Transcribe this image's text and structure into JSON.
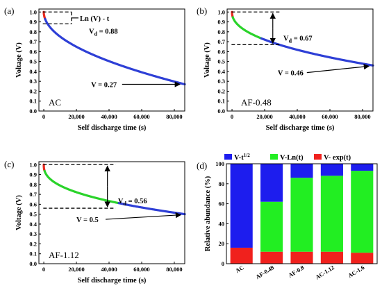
{
  "chart_data": [
    {
      "panel": "(a)",
      "type": "line",
      "sample": "AC",
      "xlabel": "Self discharge time (s)",
      "ylabel": "Voltage (V)",
      "xlim": [
        -3000,
        86400
      ],
      "ylim": [
        0,
        1.03
      ],
      "xticks": [
        0,
        20000,
        40000,
        60000,
        80000
      ],
      "xticklabels": [
        "0",
        "20,000",
        "40,000",
        "60,000",
        "80,000"
      ],
      "yticks": [
        0.0,
        0.1,
        0.2,
        0.3,
        0.4,
        0.5,
        0.6,
        0.7,
        0.8,
        0.9,
        1.0
      ],
      "yticklabels": [
        "0.0",
        "0.1",
        "0.2",
        "0.3",
        "0.4",
        "0.5",
        "0.6",
        "0.7",
        "0.8",
        "0.9",
        "1.0"
      ],
      "curve": {
        "model": "power",
        "v_start": 1.0,
        "v_end": 0.27,
        "exponent": 0.5
      },
      "fit_segments": [
        {
          "color": "#e8271c",
          "x_range": [
            0,
            800
          ]
        },
        {
          "color": "#2e3fd6",
          "x_range": [
            800,
            86400
          ]
        }
      ],
      "annotations": {
        "box_label": "Ln (V) - t",
        "vd": "V",
        "vd_sub": "d",
        "vd_value": " = 0.88",
        "v_end_label": "V = 0.27"
      },
      "dashed_levels": [
        1.0,
        0.88
      ]
    },
    {
      "panel": "(b)",
      "type": "line",
      "sample": "AF-0.48",
      "xlabel": "Self discharge time (s)",
      "ylabel": "Voltage (V)",
      "xlim": [
        -3000,
        86400
      ],
      "ylim": [
        0,
        1.03
      ],
      "xticks": [
        0,
        20000,
        40000,
        60000,
        80000
      ],
      "xticklabels": [
        "0",
        "20,000",
        "40,000",
        "60,000",
        "80,000"
      ],
      "yticks": [
        0.0,
        0.1,
        0.2,
        0.3,
        0.4,
        0.5,
        0.6,
        0.7,
        0.8,
        0.9,
        1.0
      ],
      "yticklabels": [
        "0.0",
        "0.1",
        "0.2",
        "0.3",
        "0.4",
        "0.5",
        "0.6",
        "0.7",
        "0.8",
        "0.9",
        "1.0"
      ],
      "curve": {
        "model": "power",
        "v_start": 1.0,
        "v_end": 0.46,
        "exponent": 0.45
      },
      "fit_segments": [
        {
          "color": "#e8271c",
          "x_range": [
            0,
            500
          ]
        },
        {
          "color": "#2ad32a",
          "x_range": [
            500,
            18000
          ]
        },
        {
          "color": "#2e3fd6",
          "x_range": [
            18000,
            86400
          ]
        }
      ],
      "annotations": {
        "vd": "V",
        "vd_sub": "d",
        "vd_value": " = 0.67",
        "v_end_label": "V = 0.46"
      },
      "dashed_levels": [
        1.0,
        0.67
      ]
    },
    {
      "panel": "(c)",
      "type": "line",
      "sample": "AF-1.12",
      "xlabel": "Self discharge time (s)",
      "ylabel": "Voltage (V)",
      "xlim": [
        -3000,
        86400
      ],
      "ylim": [
        0,
        1.03
      ],
      "xticks": [
        0,
        20000,
        40000,
        60000,
        80000
      ],
      "xticklabels": [
        "0",
        "20,000",
        "40,000",
        "60,000",
        "80,000"
      ],
      "yticks": [
        0.0,
        0.1,
        0.2,
        0.3,
        0.4,
        0.5,
        0.6,
        0.7,
        0.8,
        0.9,
        1.0
      ],
      "yticklabels": [
        "0.0",
        "0.1",
        "0.2",
        "0.3",
        "0.4",
        "0.5",
        "0.6",
        "0.7",
        "0.8",
        "0.9",
        "1.0"
      ],
      "curve": {
        "model": "power",
        "v_start": 1.0,
        "v_end": 0.5,
        "exponent": 0.4
      },
      "fit_segments": [
        {
          "color": "#e8271c",
          "x_range": [
            0,
            500
          ]
        },
        {
          "color": "#2ad32a",
          "x_range": [
            500,
            46000
          ]
        },
        {
          "color": "#2e3fd6",
          "x_range": [
            46000,
            86400
          ]
        }
      ],
      "annotations": {
        "vd": "V",
        "vd_sub": "d",
        "vd_value": " = 0.56",
        "v_end_label": "V = 0.5"
      },
      "dashed_levels": [
        1.0,
        0.56
      ]
    },
    {
      "panel": "(d)",
      "type": "bar",
      "stacked": true,
      "categories": [
        "AC",
        "AF-0.48",
        "AF-0.8",
        "AC-1.12",
        "AC-1.6"
      ],
      "ylabel": "Relative abundance (%)",
      "ylim": [
        0,
        100
      ],
      "yticks": [
        0,
        20,
        40,
        60,
        80,
        100
      ],
      "yticklabels": [
        "0",
        "20",
        "40",
        "60",
        "80",
        "100"
      ],
      "legend_position": "top",
      "series": [
        {
          "name": "V- exp(t)",
          "color": "#f0211d",
          "values": [
            16,
            12,
            12,
            12,
            11
          ]
        },
        {
          "name": "V-Ln(t)",
          "color": "#22ee22",
          "values": [
            0,
            50,
            74,
            76,
            82
          ]
        },
        {
          "name": "V-t",
          "name_sup": "1/2",
          "color": "#1d1dee",
          "values": [
            84,
            38,
            14,
            12,
            7
          ]
        }
      ]
    }
  ]
}
